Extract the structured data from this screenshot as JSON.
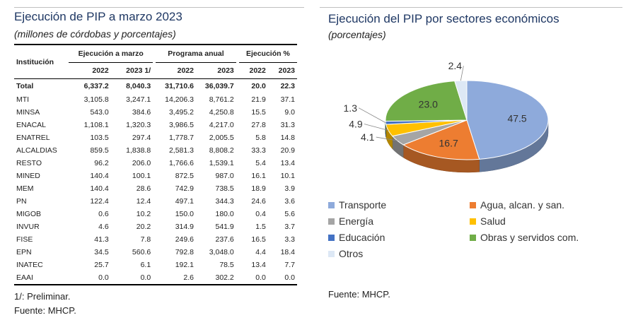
{
  "left": {
    "title": "Ejecución de PIP a marzo 2023",
    "subtitle": "(millones de córdobas y porcentajes)",
    "table": {
      "header_institucion": "Institución",
      "group_headers": [
        "Ejecución a marzo",
        "Programa anual",
        "Ejecución %"
      ],
      "year_headers": [
        "2022",
        "2023 1/",
        "2022",
        "2023",
        "2022",
        "2023"
      ],
      "rows": [
        {
          "inst": "Total",
          "vals": [
            "6,337.2",
            "8,040.3",
            "31,710.6",
            "36,039.7",
            "20.0",
            "22.3"
          ]
        },
        {
          "inst": "MTI",
          "vals": [
            "3,105.8",
            "3,247.1",
            "14,206.3",
            "8,761.2",
            "21.9",
            "37.1"
          ]
        },
        {
          "inst": "MINSA",
          "vals": [
            "543.0",
            "384.6",
            "3,495.2",
            "4,250.8",
            "15.5",
            "9.0"
          ]
        },
        {
          "inst": "ENACAL",
          "vals": [
            "1,108.1",
            "1,320.3",
            "3,986.5",
            "4,217.0",
            "27.8",
            "31.3"
          ]
        },
        {
          "inst": "ENATREL",
          "vals": [
            "103.5",
            "297.4",
            "1,778.7",
            "2,005.5",
            "5.8",
            "14.8"
          ]
        },
        {
          "inst": "ALCALDIAS",
          "vals": [
            "859.5",
            "1,838.8",
            "2,581.3",
            "8,808.2",
            "33.3",
            "20.9"
          ]
        },
        {
          "inst": "RESTO",
          "vals": [
            "96.2",
            "206.0",
            "1,766.6",
            "1,539.1",
            "5.4",
            "13.4"
          ]
        },
        {
          "inst": "MINED",
          "vals": [
            "140.4",
            "100.1",
            "872.5",
            "987.0",
            "16.1",
            "10.1"
          ]
        },
        {
          "inst": "MEM",
          "vals": [
            "140.4",
            "28.6",
            "742.9",
            "738.5",
            "18.9",
            "3.9"
          ]
        },
        {
          "inst": "PN",
          "vals": [
            "122.4",
            "12.4",
            "497.1",
            "344.3",
            "24.6",
            "3.6"
          ]
        },
        {
          "inst": "MIGOB",
          "vals": [
            "0.6",
            "10.2",
            "150.0",
            "180.0",
            "0.4",
            "5.6"
          ]
        },
        {
          "inst": "INVUR",
          "vals": [
            "4.6",
            "20.2",
            "314.9",
            "541.9",
            "1.5",
            "3.7"
          ]
        },
        {
          "inst": "FISE",
          "vals": [
            "41.3",
            "7.8",
            "249.6",
            "237.6",
            "16.5",
            "3.3"
          ]
        },
        {
          "inst": "EPN",
          "vals": [
            "34.5",
            "560.6",
            "792.8",
            "3,048.0",
            "4.4",
            "18.4"
          ]
        },
        {
          "inst": "INATEC",
          "vals": [
            "25.7",
            "6.1",
            "192.1",
            "78.5",
            "13.4",
            "7.7"
          ]
        },
        {
          "inst": "EAAI",
          "vals": [
            "0.0",
            "0.0",
            "2.6",
            "302.2",
            "0.0",
            "0.0"
          ]
        }
      ]
    },
    "note_preliminar": "1/: Preliminar.",
    "source": "Fuente: MHCP."
  },
  "right": {
    "title": "Ejecución del PIP por sectores económicos",
    "subtitle": "(porcentajes)",
    "source": "Fuente: MHCP."
  },
  "chart_data": {
    "type": "pie",
    "title": "Ejecución del PIP por sectores económicos",
    "subtitle": "(porcentajes)",
    "slices": [
      {
        "label": "Transporte",
        "value": 47.5,
        "color": "#8eaadb"
      },
      {
        "label": "Agua, alcan. y san.",
        "value": 16.7,
        "color": "#ed7d31"
      },
      {
        "label": "Energía",
        "value": 4.1,
        "color": "#a5a5a5"
      },
      {
        "label": "Salud",
        "value": 4.9,
        "color": "#ffc000"
      },
      {
        "label": "Educación",
        "value": 1.3,
        "color": "#4472c4"
      },
      {
        "label": "Obras y servidos com.",
        "value": 23.0,
        "color": "#70ad47"
      },
      {
        "label": "Otros",
        "value": 2.4,
        "color": "#dde8f5"
      }
    ],
    "value_labels": [
      "47.5",
      "16.7",
      "4.1",
      "4.9",
      "1.3",
      "23.0",
      "2.4"
    ],
    "legend_position": "bottom",
    "style": "3d"
  }
}
